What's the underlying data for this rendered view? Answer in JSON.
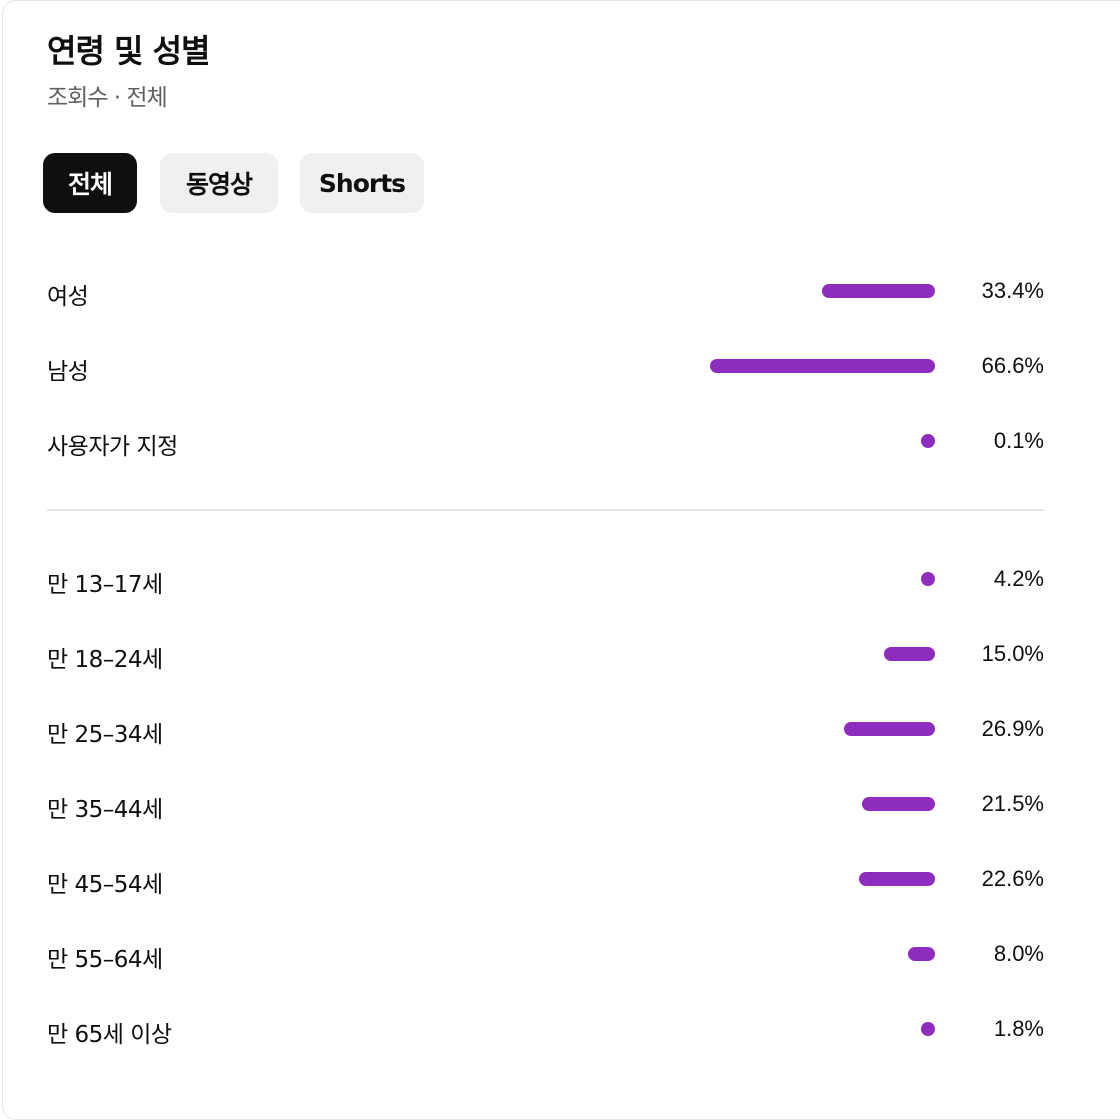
{
  "header": {
    "title": "연령 및 성별",
    "subtitle": "조회수 · 전체"
  },
  "chips": [
    {
      "label": "전체",
      "active": true
    },
    {
      "label": "동영상",
      "active": false
    },
    {
      "label": "Shorts",
      "active": false
    }
  ],
  "bar_color": "#8e2dbd",
  "gender": [
    {
      "label": "여성",
      "value": 33.4,
      "text": "33.4%"
    },
    {
      "label": "남성",
      "value": 66.6,
      "text": "66.6%"
    },
    {
      "label": "사용자가 지정",
      "value": 0.1,
      "text": "0.1%"
    }
  ],
  "age": [
    {
      "label": "만 13–17세",
      "value": 4.2,
      "text": "4.2%"
    },
    {
      "label": "만 18–24세",
      "value": 15.0,
      "text": "15.0%"
    },
    {
      "label": "만 25–34세",
      "value": 26.9,
      "text": "26.9%"
    },
    {
      "label": "만 35–44세",
      "value": 21.5,
      "text": "21.5%"
    },
    {
      "label": "만 45–54세",
      "value": 22.6,
      "text": "22.6%"
    },
    {
      "label": "만 55–64세",
      "value": 8.0,
      "text": "8.0%"
    },
    {
      "label": "만 65세 이상",
      "value": 1.8,
      "text": "1.8%"
    }
  ]
}
